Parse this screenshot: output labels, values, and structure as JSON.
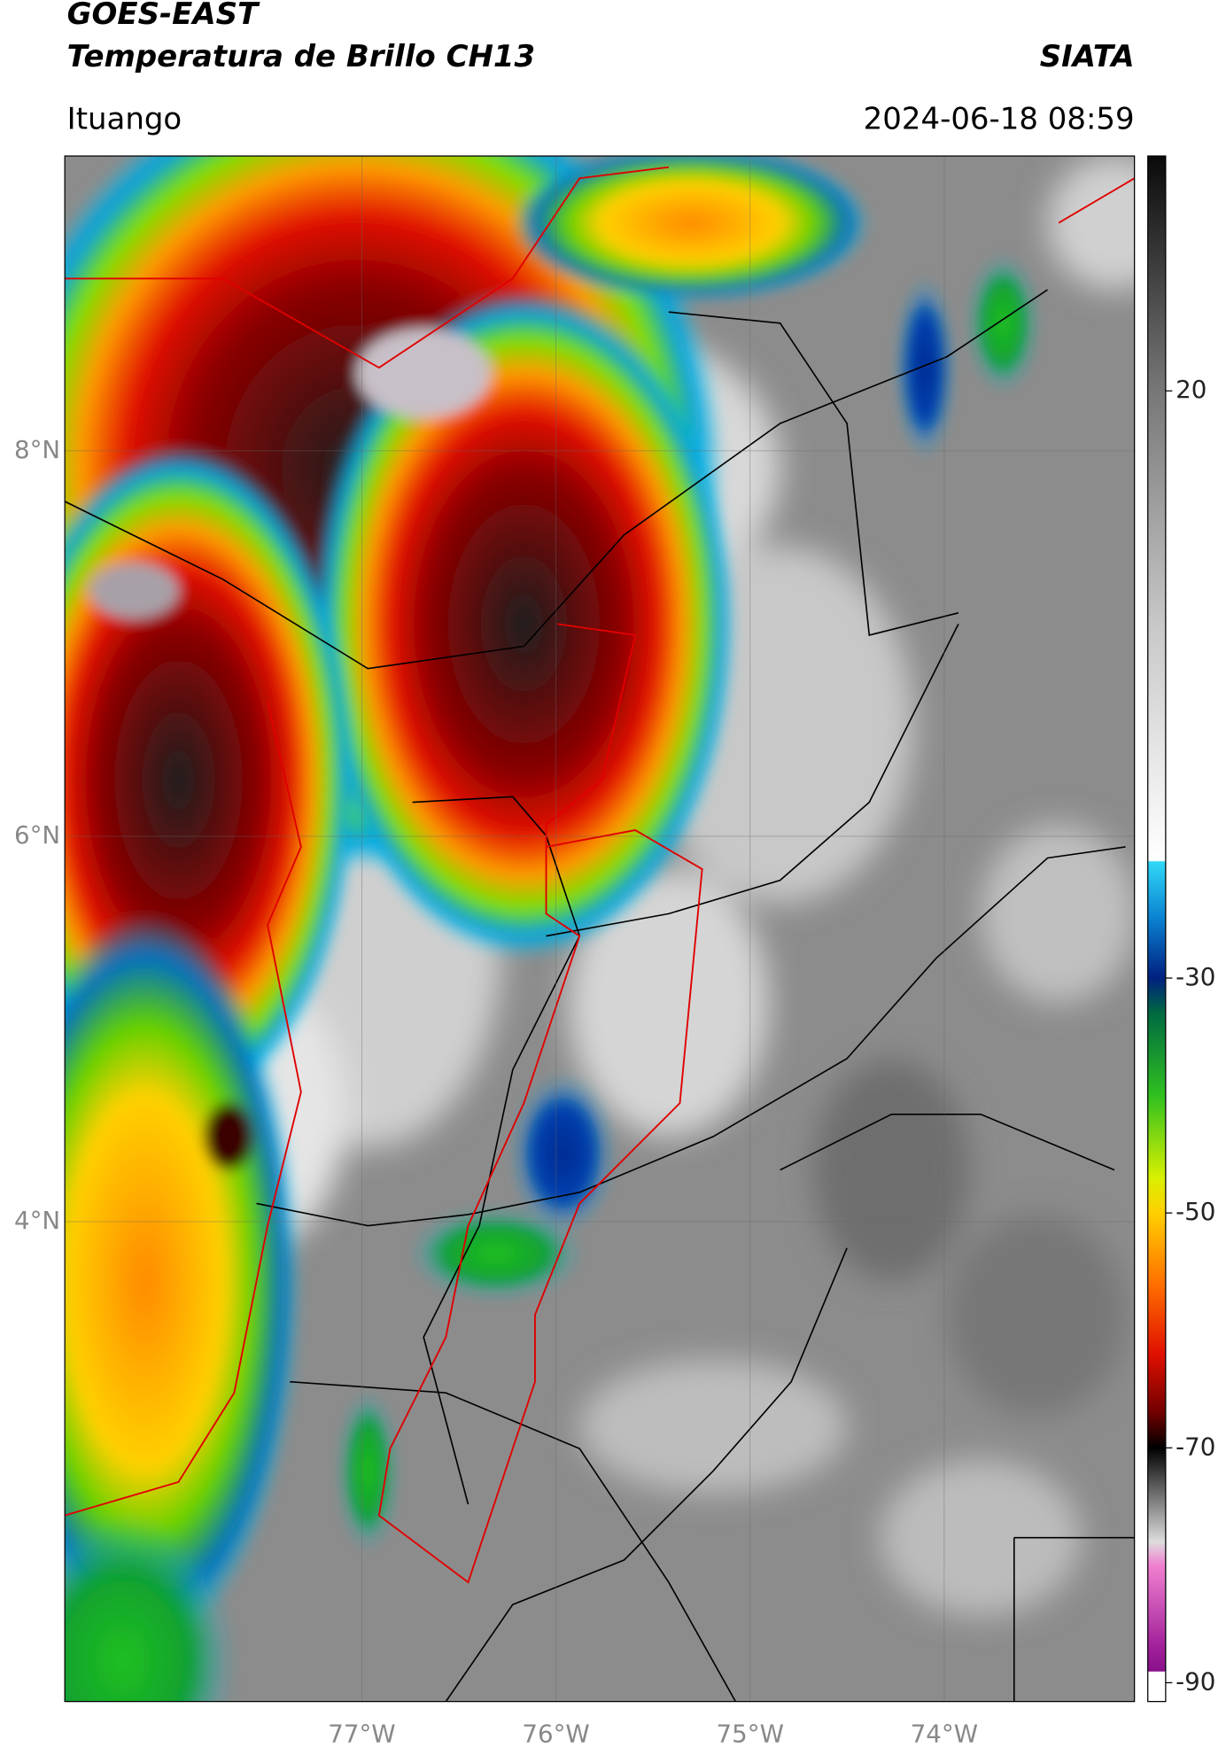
{
  "header": {
    "satellite": "GOES-EAST",
    "product": "Temperatura de Brillo CH13",
    "source": "SIATA",
    "region": "Ituango",
    "datetime": "2024-06-18 08:59"
  },
  "map": {
    "xlim": [
      -78.53,
      -73.02
    ],
    "ylim": [
      1.51,
      9.53
    ],
    "xticks": [
      {
        "value": -77,
        "label": "77°W"
      },
      {
        "value": -76,
        "label": "76°W"
      },
      {
        "value": -75,
        "label": "75°W"
      },
      {
        "value": -74,
        "label": "74°W"
      }
    ],
    "yticks": [
      {
        "value": 8,
        "label": "8°N"
      },
      {
        "value": 6,
        "label": "6°N"
      },
      {
        "value": 4,
        "label": "4°N"
      }
    ]
  },
  "colorbar": {
    "lim": [
      -91.6,
      40
    ],
    "ticks": [
      20,
      -30,
      -50,
      -70,
      -90
    ]
  }
}
